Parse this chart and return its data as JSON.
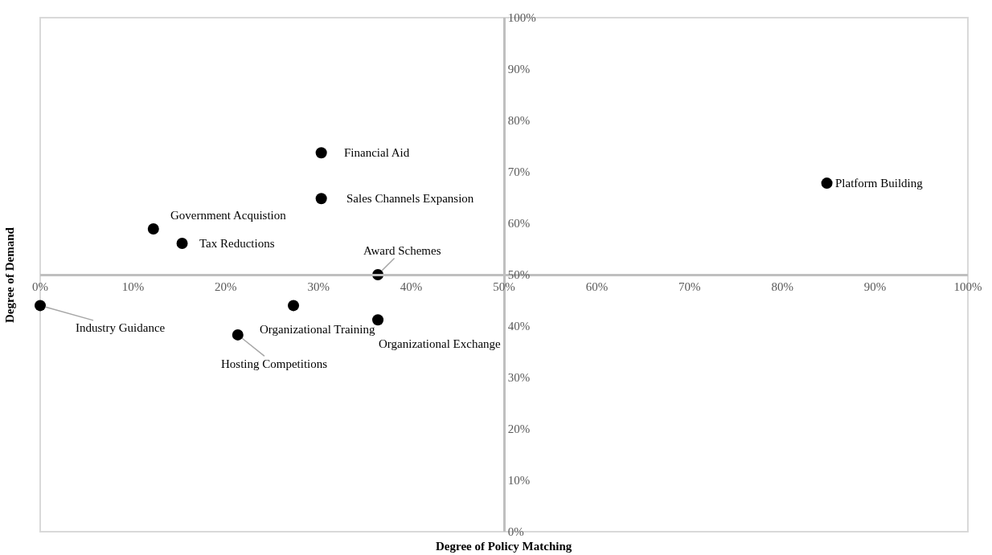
{
  "chart_data": {
    "type": "scatter",
    "xlabel": "Degree of Policy Matching",
    "ylabel": "Degree of Demand",
    "series": [
      {
        "color": "#000000",
        "x": [
          0,
          12.2,
          15.3,
          30.3,
          30.3,
          36.4,
          27.3,
          36.4,
          21.3,
          84.8
        ],
        "values": [
          44,
          58.9,
          56.1,
          73.7,
          64.8,
          50,
          44,
          41.2,
          38.3,
          67.8
        ]
      }
    ],
    "annotations": [
      {
        "text": "Industry Guidance",
        "x": 0,
        "y": 44
      },
      {
        "text": "Government Acquistion",
        "x": 12.2,
        "y": 58.9
      },
      {
        "text": "Tax Reductions",
        "x": 15.3,
        "y": 56.1
      },
      {
        "text": "Financial Aid",
        "x": 30.3,
        "y": 73.7
      },
      {
        "text": "Sales Channels Expansion",
        "x": 30.3,
        "y": 64.8
      },
      {
        "text": "Award Schemes",
        "x": 36.4,
        "y": 50
      },
      {
        "text": "Organizational Training",
        "x": 27.3,
        "y": 44
      },
      {
        "text": "Organizational Exchange",
        "x": 36.4,
        "y": 41.2
      },
      {
        "text": "Hosting Competitions",
        "x": 21.3,
        "y": 38.3
      },
      {
        "text": "Platform Building",
        "x": 84.8,
        "y": 67.8
      }
    ],
    "xlim": [
      0,
      100
    ],
    "ylim": [
      0,
      100
    ],
    "xticks": [
      {
        "value": 0,
        "label": "0%"
      },
      {
        "value": 10,
        "label": "10%"
      },
      {
        "value": 20,
        "label": "20%"
      },
      {
        "value": 30,
        "label": "30%"
      },
      {
        "value": 40,
        "label": "40%"
      },
      {
        "value": 50,
        "label": "50%"
      },
      {
        "value": 60,
        "label": "60%"
      },
      {
        "value": 70,
        "label": "70%"
      },
      {
        "value": 80,
        "label": "80%"
      },
      {
        "value": 90,
        "label": "90%"
      },
      {
        "value": 100,
        "label": "100%"
      }
    ],
    "yticks": [
      {
        "value": 0,
        "label": "0%"
      },
      {
        "value": 10,
        "label": "10%"
      },
      {
        "value": 20,
        "label": "20%"
      },
      {
        "value": 30,
        "label": "30%"
      },
      {
        "value": 40,
        "label": "40%"
      },
      {
        "value": 50,
        "label": "50%"
      },
      {
        "value": 60,
        "label": "60%"
      },
      {
        "value": 70,
        "label": "70%"
      },
      {
        "value": 80,
        "label": "80%"
      },
      {
        "value": 90,
        "label": "90%"
      },
      {
        "value": 100,
        "label": "100%"
      }
    ],
    "marker": "circle",
    "grid": false
  }
}
